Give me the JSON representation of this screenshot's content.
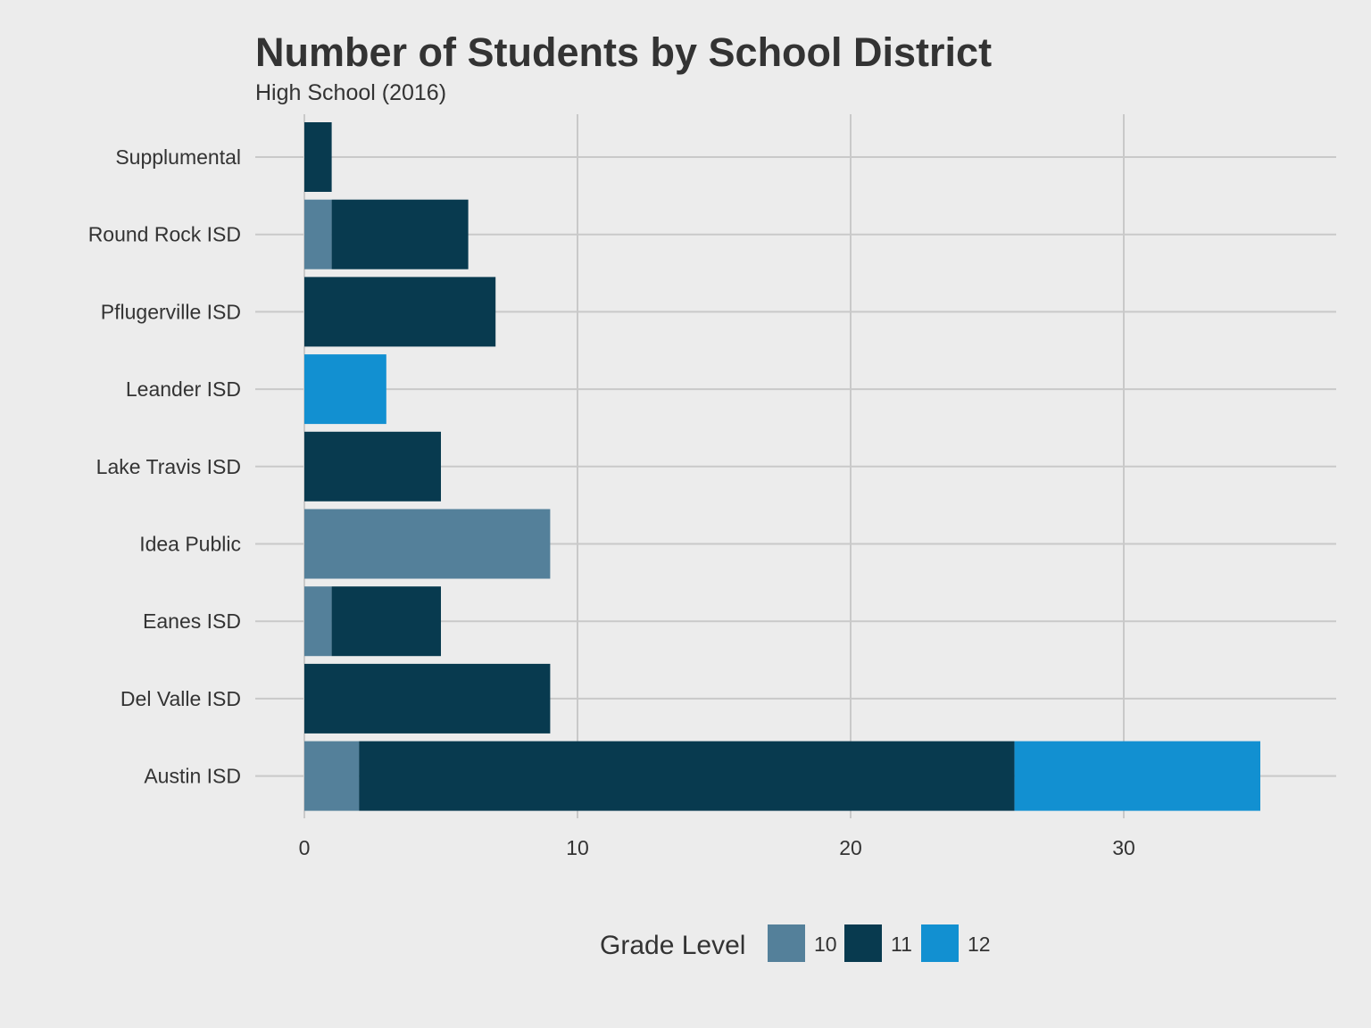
{
  "chart_data": {
    "type": "bar",
    "orientation": "horizontal",
    "stacked": true,
    "title": "Number of Students by School District",
    "subtitle": "High School (2016)",
    "xlabel": "",
    "ylabel": "",
    "xlim": [
      0,
      36.5
    ],
    "xticks": [
      0,
      10,
      20,
      30
    ],
    "grid": true,
    "legend_position": "bottom",
    "legend_title": "Grade Level",
    "categories": [
      "Supplumental",
      "Round Rock ISD",
      "Pflugerville ISD",
      "Leander ISD",
      "Lake Travis ISD",
      "Idea Public",
      "Eanes ISD",
      "Del Valle ISD",
      "Austin ISD"
    ],
    "series": [
      {
        "name": "10",
        "color": "#54809a",
        "values": [
          0,
          1,
          0,
          0,
          0,
          9,
          1,
          0,
          2
        ]
      },
      {
        "name": "11",
        "color": "#083a4f",
        "values": [
          1,
          5,
          7,
          0,
          5,
          0,
          4,
          9,
          24
        ]
      },
      {
        "name": "12",
        "color": "#1290d1",
        "values": [
          0,
          0,
          0,
          3,
          0,
          0,
          0,
          0,
          9
        ]
      }
    ]
  }
}
